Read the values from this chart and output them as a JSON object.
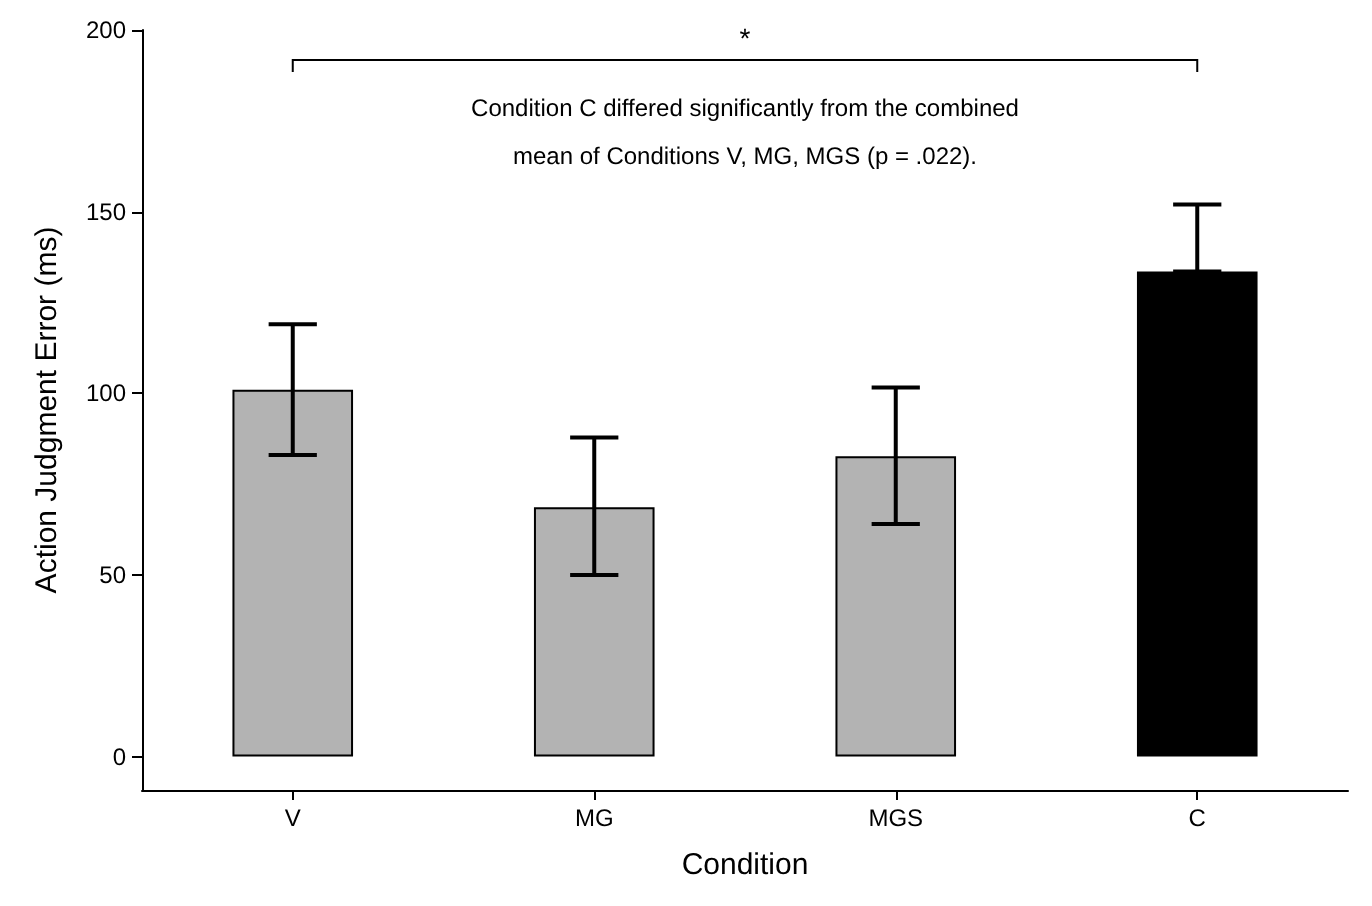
{
  "chart_data": {
    "type": "bar",
    "xlabel": "Condition",
    "ylabel": "Action Judgment Error (ms)",
    "categories": [
      "V",
      "MG",
      "MGS",
      "C"
    ],
    "values": [
      101,
      68.6,
      82.7,
      133.5
    ],
    "errors": [
      [
        83,
        119
      ],
      [
        50,
        87.8
      ],
      [
        64,
        101.6
      ],
      [
        133.5,
        152
      ]
    ],
    "colors": [
      "#b3b3b3",
      "#b3b3b3",
      "#b3b3b3",
      "#000000"
    ],
    "ylim": [
      -9.2,
      200
    ],
    "yticks": [
      0,
      50,
      100,
      150,
      200
    ],
    "grid": false,
    "annotations": [
      "*",
      "Condition C differed significantly from the combined",
      "mean of Conditions V, MG, MGS (p = .022)."
    ]
  }
}
